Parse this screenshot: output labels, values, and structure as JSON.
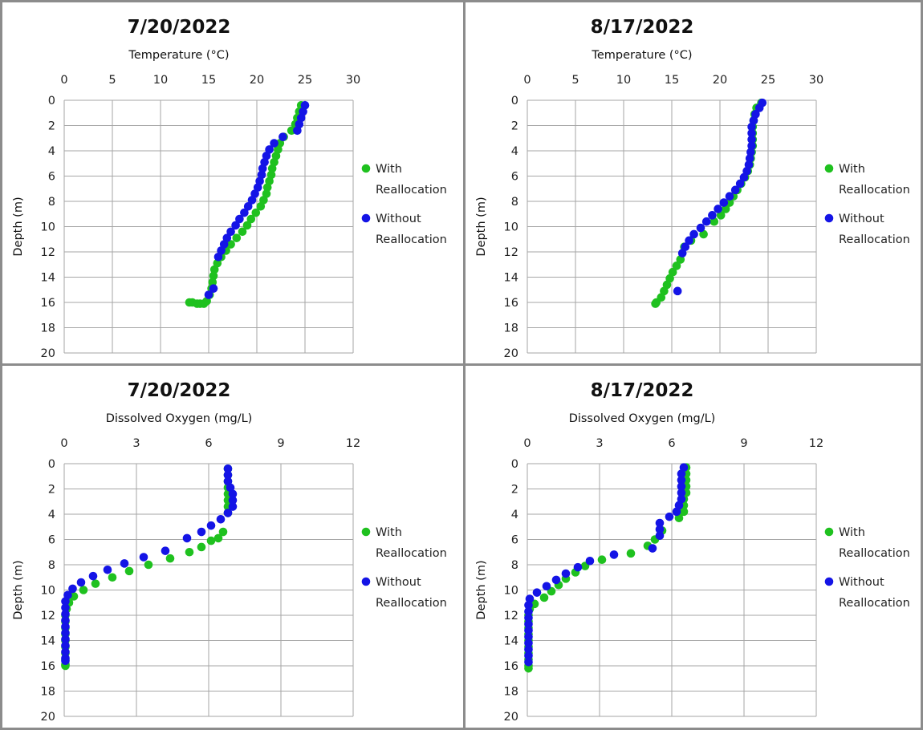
{
  "colors": {
    "with": "#1fc11f",
    "without": "#1414e6",
    "grid": "#a6a6a6",
    "frame": "#8c8c8c"
  },
  "chart_data": [
    {
      "type": "scatter",
      "title": "7/20/2022",
      "xlabel": "Temperature (°C)",
      "ylabel": "Depth (m)",
      "xlim": [
        0,
        30
      ],
      "ylim": [
        0,
        20
      ],
      "y_inverted": true,
      "x_axis_position": "top",
      "xticks": [
        "0",
        "5",
        "10",
        "15",
        "20",
        "25",
        "30"
      ],
      "yticks": [
        "0",
        "2",
        "4",
        "6",
        "8",
        "10",
        "12",
        "14",
        "16",
        "18",
        "20"
      ],
      "grid": true,
      "legend": "right",
      "series": [
        {
          "name": "With Reallocation",
          "x": [
            24.6,
            24.4,
            24.2,
            24.0,
            23.6,
            22.8,
            22.4,
            22.2,
            22.0,
            21.8,
            21.6,
            21.5,
            21.3,
            21.1,
            21.0,
            20.7,
            20.4,
            19.9,
            19.4,
            19.0,
            18.5,
            17.9,
            17.3,
            16.8,
            16.3,
            15.9,
            15.6,
            15.5,
            15.4,
            15.3,
            15.1,
            14.8,
            14.5,
            14.1,
            13.8,
            13.3,
            13.0
          ],
          "y": [
            0.4,
            0.9,
            1.4,
            1.9,
            2.4,
            2.9,
            3.4,
            3.9,
            4.4,
            4.9,
            5.4,
            5.9,
            6.4,
            6.9,
            7.4,
            7.9,
            8.4,
            8.9,
            9.4,
            9.9,
            10.4,
            10.9,
            11.4,
            11.9,
            12.4,
            12.9,
            13.4,
            13.9,
            14.4,
            14.9,
            15.4,
            15.9,
            16.1,
            16.1,
            16.1,
            16.0,
            16.0
          ]
        },
        {
          "name": "Without Reallocation",
          "x": [
            25.0,
            24.8,
            24.6,
            24.4,
            24.2,
            22.7,
            21.8,
            21.3,
            21.0,
            20.8,
            20.6,
            20.5,
            20.3,
            20.1,
            19.8,
            19.5,
            19.1,
            18.7,
            18.2,
            17.8,
            17.3,
            16.9,
            16.6,
            16.3,
            16.0,
            15.5,
            15.0
          ],
          "y": [
            0.4,
            0.9,
            1.4,
            1.9,
            2.4,
            2.9,
            3.4,
            3.9,
            4.4,
            4.9,
            5.4,
            5.9,
            6.4,
            6.9,
            7.4,
            7.9,
            8.4,
            8.9,
            9.4,
            9.9,
            10.4,
            10.9,
            11.4,
            11.9,
            12.4,
            14.9,
            15.4
          ]
        }
      ]
    },
    {
      "type": "scatter",
      "title": "8/17/2022",
      "xlabel": "Temperature (°C)",
      "ylabel": "Depth (m)",
      "xlim": [
        0,
        30
      ],
      "ylim": [
        0,
        20
      ],
      "y_inverted": true,
      "x_axis_position": "top",
      "xticks": [
        "0",
        "5",
        "10",
        "15",
        "20",
        "25",
        "30"
      ],
      "yticks": [
        "0",
        "2",
        "4",
        "6",
        "8",
        "10",
        "12",
        "14",
        "16",
        "18",
        "20"
      ],
      "grid": true,
      "legend": "right",
      "series": [
        {
          "name": "With Reallocation",
          "x": [
            24.3,
            23.8,
            23.6,
            23.5,
            23.4,
            23.4,
            23.4,
            23.4,
            23.3,
            23.2,
            23.1,
            22.9,
            22.6,
            22.2,
            21.8,
            21.4,
            21.0,
            20.6,
            20.1,
            19.4,
            18.3,
            17.0,
            16.3,
            15.9,
            15.5,
            15.1,
            14.8,
            14.5,
            14.2,
            13.9,
            13.4,
            13.3
          ],
          "y": [
            0.2,
            0.6,
            1.1,
            1.6,
            2.1,
            2.6,
            3.1,
            3.6,
            4.1,
            4.6,
            5.1,
            5.6,
            6.1,
            6.6,
            7.1,
            7.6,
            8.1,
            8.6,
            9.1,
            9.6,
            10.6,
            11.1,
            11.6,
            12.6,
            13.1,
            13.6,
            14.1,
            14.6,
            15.1,
            15.6,
            16.0,
            16.1
          ]
        },
        {
          "name": "Without Reallocation",
          "x": [
            24.4,
            24.1,
            23.7,
            23.5,
            23.3,
            23.3,
            23.3,
            23.3,
            23.2,
            23.1,
            23.0,
            22.8,
            22.5,
            22.1,
            21.6,
            21.0,
            20.4,
            19.8,
            19.2,
            18.6,
            18.0,
            17.3,
            16.8,
            16.4,
            16.1,
            15.6
          ],
          "y": [
            0.2,
            0.6,
            1.1,
            1.6,
            2.1,
            2.6,
            3.1,
            3.6,
            4.1,
            4.6,
            5.1,
            5.6,
            6.1,
            6.6,
            7.1,
            7.6,
            8.1,
            8.6,
            9.1,
            9.6,
            10.1,
            10.6,
            11.1,
            11.6,
            12.1,
            15.1
          ]
        }
      ]
    },
    {
      "type": "scatter",
      "title": "7/20/2022",
      "xlabel": "Dissolved Oxygen (mg/L)",
      "ylabel": "Depth (m)",
      "xlim": [
        0,
        12
      ],
      "ylim": [
        0,
        20
      ],
      "y_inverted": true,
      "x_axis_position": "top",
      "xticks": [
        "0",
        "3",
        "6",
        "9",
        "12"
      ],
      "yticks": [
        "0",
        "2",
        "4",
        "6",
        "8",
        "10",
        "12",
        "14",
        "16",
        "18",
        "20"
      ],
      "grid": true,
      "legend": "right",
      "series": [
        {
          "name": "With Reallocation",
          "x": [
            6.8,
            6.8,
            6.8,
            6.8,
            6.8,
            6.8,
            6.8,
            6.8,
            6.6,
            6.4,
            6.1,
            5.7,
            5.2,
            4.4,
            3.5,
            2.7,
            2.0,
            1.3,
            0.8,
            0.4,
            0.2,
            0.1,
            0.05,
            0.05,
            0.05,
            0.05,
            0.05,
            0.05,
            0.05,
            0.05,
            0.05,
            0.05
          ],
          "y": [
            0.4,
            0.9,
            1.4,
            1.9,
            2.4,
            2.9,
            3.4,
            3.9,
            5.4,
            5.9,
            6.1,
            6.6,
            7.0,
            7.5,
            8.0,
            8.5,
            9.0,
            9.5,
            10.0,
            10.5,
            11.0,
            11.5,
            12.0,
            12.5,
            13.0,
            13.5,
            14.0,
            14.5,
            15.0,
            15.5,
            15.9,
            16.0
          ]
        },
        {
          "name": "Without Reallocation",
          "x": [
            6.8,
            6.8,
            6.8,
            6.9,
            7.0,
            7.0,
            7.0,
            6.8,
            6.5,
            6.1,
            5.7,
            5.1,
            4.2,
            3.3,
            2.5,
            1.8,
            1.2,
            0.7,
            0.35,
            0.15,
            0.05,
            0.05,
            0.05,
            0.05,
            0.05,
            0.05,
            0.05,
            0.05,
            0.05,
            0.05,
            0.05
          ],
          "y": [
            0.4,
            0.9,
            1.4,
            1.9,
            2.4,
            2.9,
            3.4,
            3.9,
            4.4,
            4.9,
            5.4,
            5.9,
            6.9,
            7.4,
            7.9,
            8.4,
            8.9,
            9.4,
            9.9,
            10.4,
            10.9,
            11.4,
            11.9,
            12.4,
            12.9,
            13.4,
            13.9,
            14.4,
            14.9,
            15.4,
            15.6
          ]
        }
      ]
    },
    {
      "type": "scatter",
      "title": "8/17/2022",
      "xlabel": "Dissolved Oxygen (mg/L)",
      "ylabel": "Depth (m)",
      "xlim": [
        0,
        12
      ],
      "ylim": [
        0,
        20
      ],
      "y_inverted": true,
      "x_axis_position": "top",
      "xticks": [
        "0",
        "3",
        "6",
        "9",
        "12"
      ],
      "yticks": [
        "0",
        "2",
        "4",
        "6",
        "8",
        "10",
        "12",
        "14",
        "16",
        "18",
        "20"
      ],
      "grid": true,
      "legend": "right",
      "series": [
        {
          "name": "With Reallocation",
          "x": [
            6.6,
            6.6,
            6.6,
            6.6,
            6.6,
            6.5,
            6.5,
            6.5,
            6.3,
            5.6,
            5.3,
            5.0,
            4.3,
            3.1,
            2.4,
            2.0,
            1.6,
            1.3,
            1.0,
            0.7,
            0.3,
            0.1,
            0.05,
            0.05,
            0.05,
            0.05,
            0.05,
            0.05,
            0.05,
            0.05,
            0.05,
            0.05
          ],
          "y": [
            0.3,
            0.8,
            1.3,
            1.8,
            2.3,
            2.8,
            3.3,
            3.8,
            4.3,
            5.3,
            6.0,
            6.5,
            7.1,
            7.6,
            8.1,
            8.6,
            9.1,
            9.6,
            10.1,
            10.6,
            11.1,
            11.5,
            12.0,
            12.5,
            13.0,
            13.5,
            14.0,
            14.5,
            15.0,
            15.5,
            16.0,
            16.2
          ]
        },
        {
          "name": "Without Reallocation",
          "x": [
            6.5,
            6.4,
            6.4,
            6.4,
            6.4,
            6.4,
            6.3,
            6.2,
            5.9,
            5.5,
            5.5,
            5.5,
            5.2,
            3.6,
            2.6,
            2.1,
            1.6,
            1.2,
            0.8,
            0.4,
            0.1,
            0.05,
            0.05,
            0.05,
            0.05,
            0.05,
            0.05,
            0.05,
            0.05,
            0.05,
            0.05
          ],
          "y": [
            0.3,
            0.8,
            1.3,
            1.8,
            2.3,
            2.8,
            3.3,
            3.8,
            4.2,
            4.7,
            5.2,
            5.7,
            6.7,
            7.2,
            7.7,
            8.2,
            8.7,
            9.2,
            9.7,
            10.2,
            10.7,
            11.2,
            11.7,
            12.2,
            12.7,
            13.2,
            13.7,
            14.2,
            14.7,
            15.2,
            15.7
          ]
        }
      ]
    }
  ]
}
